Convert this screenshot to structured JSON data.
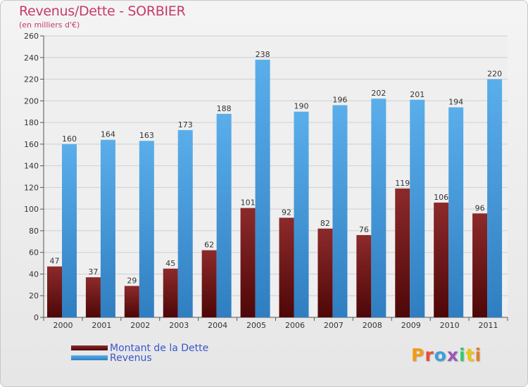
{
  "chart_data": {
    "type": "bar",
    "title": "Revenus/Dette - SORBIER",
    "subtitle": "(en milliers d'€)",
    "categories": [
      "2000",
      "2001",
      "2002",
      "2003",
      "2004",
      "2005",
      "2006",
      "2007",
      "2008",
      "2009",
      "2010",
      "2011"
    ],
    "series": [
      {
        "name": "Montant de la Dette",
        "color": "#7a1f20",
        "values": [
          47,
          37,
          29,
          45,
          62,
          101,
          92,
          82,
          76,
          119,
          106,
          96
        ]
      },
      {
        "name": "Revenus",
        "color": "#4ea3e4",
        "values": [
          160,
          164,
          163,
          173,
          188,
          238,
          190,
          196,
          202,
          201,
          194,
          220
        ]
      }
    ],
    "ylim": [
      0,
      260
    ],
    "yticks": [
      0,
      20,
      40,
      60,
      80,
      100,
      120,
      140,
      160,
      180,
      200,
      220,
      240,
      260
    ],
    "grid": true,
    "legend": "bottom-left"
  },
  "logo": {
    "text": "Proxiti",
    "colors": [
      "#f39c12",
      "#e74c3c",
      "#3aa0db",
      "#9b59b6",
      "#2ecc71",
      "#f1c40f",
      "#e67e22"
    ]
  }
}
